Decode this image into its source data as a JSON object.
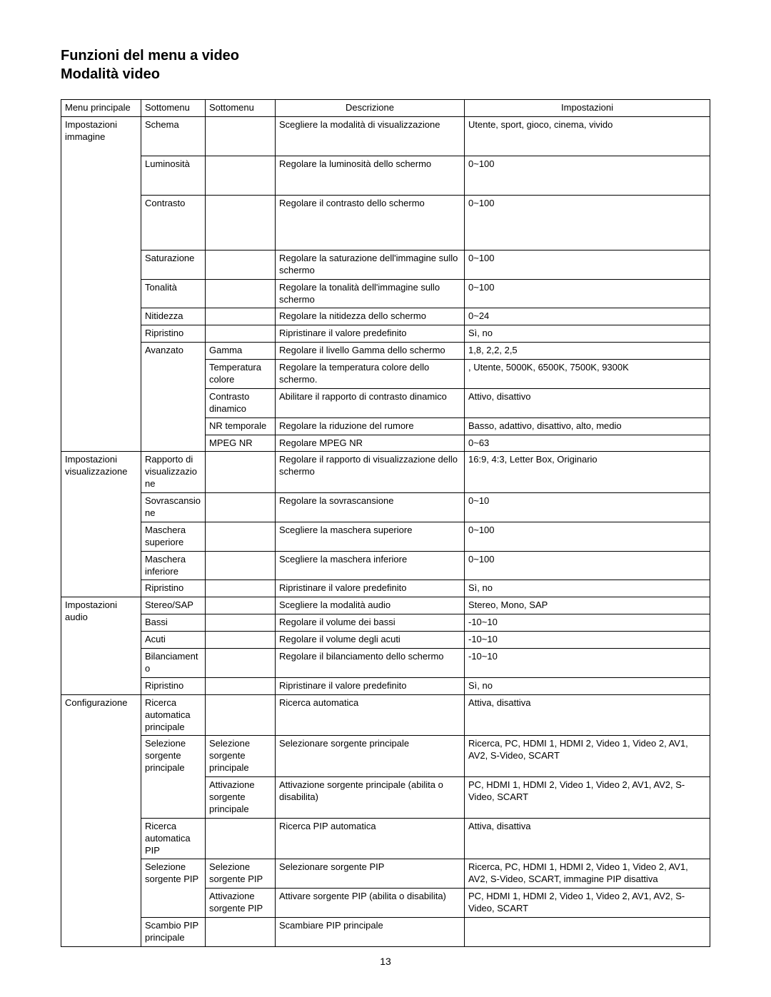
{
  "title_line1": "Funzioni del menu a video",
  "title_line2": "Modalità video",
  "page_number": "13",
  "headers": {
    "h1": "Menu principale",
    "h2": "Sottomenu",
    "h3": "Sottomenu",
    "h4": "Descrizione",
    "h5": "Impostazioni"
  },
  "sections": {
    "immagine": {
      "menu": "Impostazioni immagine",
      "rows": [
        {
          "sub1": "Schema",
          "sub2": "",
          "desc": "Scegliere la modalità di visualizzazione",
          "set": "Utente, sport, gioco, cinema, vivido"
        },
        {
          "sub1": "Luminosità",
          "sub2": "",
          "desc": "Regolare la luminosità dello schermo",
          "set": "0~100"
        },
        {
          "sub1": "Contrasto",
          "sub2": "",
          "desc": "Regolare il contrasto dello schermo",
          "set": "0~100"
        },
        {
          "sub1": "Saturazione",
          "sub2": "",
          "desc": "Regolare la saturazione dell'immagine sullo schermo",
          "set": "0~100"
        },
        {
          "sub1": "Tonalità",
          "sub2": "",
          "desc": "Regolare la tonalità dell'immagine sullo schermo",
          "set": "0~100"
        },
        {
          "sub1": "Nitidezza",
          "sub2": "",
          "desc": "Regolare la nitidezza dello schermo",
          "set": "0~24"
        },
        {
          "sub1": "Ripristino",
          "sub2": "",
          "desc": "Ripristinare il valore predefinito",
          "set": "Sì, no"
        }
      ],
      "avanzato_label": "Avanzato",
      "avanzato": [
        {
          "sub2": "Gamma",
          "desc": "Regolare il livello Gamma dello schermo",
          "set": "1,8, 2,2, 2,5"
        },
        {
          "sub2": "Temperatura colore",
          "desc": "Regolare la temperatura colore dello schermo.",
          "set": ", Utente, 5000K, 6500K, 7500K, 9300K"
        },
        {
          "sub2": "Contrasto dinamico",
          "desc": "Abilitare il rapporto di contrasto dinamico",
          "set": "Attivo, disattivo"
        },
        {
          "sub2": "NR temporale",
          "desc": "Regolare la riduzione del rumore",
          "set": "Basso, adattivo, disattivo, alto, medio"
        },
        {
          "sub2": "MPEG NR",
          "desc": "Regolare MPEG NR",
          "set": "0~63"
        }
      ]
    },
    "visual": {
      "menu": "Impostazioni visualizzazione",
      "rows": [
        {
          "sub1": "Rapporto di visualizzazione",
          "desc": "Regolare il rapporto di visualizzazione dello schermo",
          "set": "16:9, 4:3, Letter Box, Originario"
        },
        {
          "sub1": "Sovrascansione",
          "desc": "Regolare la sovrascansione",
          "set": "0~10"
        },
        {
          "sub1": "Maschera superiore",
          "desc": "Scegliere la maschera superiore",
          "set": "0~100"
        },
        {
          "sub1": "Maschera inferiore",
          "desc": "Scegliere la maschera inferiore",
          "set": "0~100"
        },
        {
          "sub1": "Ripristino",
          "desc": "Ripristinare il valore predefinito",
          "set": "Sì, no"
        }
      ]
    },
    "audio": {
      "menu": "Impostazioni audio",
      "rows": [
        {
          "sub1": "Stereo/SAP",
          "desc": "Scegliere la modalità audio",
          "set": "Stereo, Mono, SAP"
        },
        {
          "sub1": "Bassi",
          "desc": "Regolare il volume dei bassi",
          "set": "-10~10"
        },
        {
          "sub1": "Acuti",
          "desc": "Regolare il volume degli acuti",
          "set": "-10~10"
        },
        {
          "sub1": "Bilanciamento",
          "desc": "Regolare il bilanciamento dello schermo",
          "set": "-10~10"
        },
        {
          "sub1": "Ripristino",
          "desc": "Ripristinare il valore predefinito",
          "set": "Sì, no"
        }
      ]
    },
    "config": {
      "menu": "Configurazione",
      "r0": {
        "sub1": "Ricerca automatica principale",
        "desc": "Ricerca automatica",
        "set": "Attiva, disattiva"
      },
      "sel_main_label": "Selezione sorgente principale",
      "sel_main": [
        {
          "sub2": "Selezione sorgente principale",
          "desc": "Selezionare sorgente principale",
          "set": "Ricerca, PC, HDMI 1, HDMI 2, Video 1, Video 2, AV1, AV2, S-Video, SCART"
        },
        {
          "sub2": "Attivazione sorgente principale",
          "desc": "Attivazione sorgente principale (abilita o disabilita)",
          "set": "PC, HDMI 1, HDMI 2, Video 1, Video 2, AV1, AV2, S-Video, SCART"
        }
      ],
      "r_pip_auto": {
        "sub1": "Ricerca automatica PIP",
        "desc": "Ricerca PIP automatica",
        "set": "Attiva, disattiva"
      },
      "sel_pip_label": "Selezione sorgente PIP",
      "sel_pip": [
        {
          "sub2": "Selezione sorgente PIP",
          "desc": "Selezionare sorgente PIP",
          "set": "Ricerca, PC, HDMI 1, HDMI 2, Video 1, Video 2, AV1, AV2, S-Video, SCART, immagine PIP disattiva"
        },
        {
          "sub2": "Attivazione sorgente PIP",
          "desc": "Attivare sorgente PIP (abilita o disabilita)",
          "set": "PC, HDMI 1, HDMI 2, Video 1, Video 2, AV1, AV2, S-Video, SCART"
        }
      ],
      "r_swap": {
        "sub1": "Scambio PIP principale",
        "desc": "Scambiare PIP principale",
        "set": ""
      }
    }
  }
}
